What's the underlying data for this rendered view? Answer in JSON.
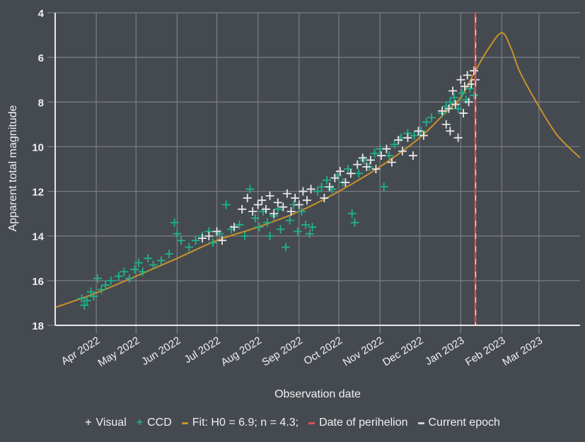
{
  "chart_data": {
    "type": "scatter",
    "xlabel": "Observation date",
    "ylabel": "Apparent total magnitude",
    "xlim": [
      "2022-03-01",
      "2023-04-01"
    ],
    "ylim": [
      18,
      4
    ],
    "y_inverted": true,
    "grid": true,
    "legend_placement": "bottom",
    "yticks": [
      4,
      6,
      8,
      10,
      12,
      14,
      16,
      18
    ],
    "xticks": [
      {
        "date": "2022-04-01",
        "label": "Apr 2022"
      },
      {
        "date": "2022-05-01",
        "label": "May 2022"
      },
      {
        "date": "2022-06-01",
        "label": "Jun 2022"
      },
      {
        "date": "2022-07-01",
        "label": "Jul 2022"
      },
      {
        "date": "2022-08-01",
        "label": "Aug 2022"
      },
      {
        "date": "2022-09-01",
        "label": "Sep 2022"
      },
      {
        "date": "2022-10-01",
        "label": "Oct 2022"
      },
      {
        "date": "2022-11-01",
        "label": "Nov 2022"
      },
      {
        "date": "2022-12-01",
        "label": "Dec 2022"
      },
      {
        "date": "2023-01-01",
        "label": "Jan 2023"
      },
      {
        "date": "2023-02-01",
        "label": "Feb 2023"
      },
      {
        "date": "2023-03-01",
        "label": "Mar 2023"
      }
    ],
    "colors": {
      "background": "#454a50",
      "grid": "#7b7f85",
      "visual": "#e6e6e6",
      "ccd": "#1db38b",
      "fit": "#c8922a",
      "perihelion": "#d9534f",
      "current_epoch": "#e6e6e6"
    },
    "series": [
      {
        "name": "Visual",
        "type": "scatter",
        "marker": "plus",
        "points": [
          [
            "2022-06-20",
            14.1
          ],
          [
            "2022-06-25",
            14.0
          ],
          [
            "2022-07-01",
            13.8
          ],
          [
            "2022-07-05",
            14.2
          ],
          [
            "2022-07-14",
            13.6
          ],
          [
            "2022-07-20",
            12.8
          ],
          [
            "2022-07-24",
            12.3
          ],
          [
            "2022-07-28",
            12.9
          ],
          [
            "2022-08-01",
            12.6
          ],
          [
            "2022-08-04",
            12.4
          ],
          [
            "2022-08-07",
            12.8
          ],
          [
            "2022-08-10",
            12.2
          ],
          [
            "2022-08-13",
            13.0
          ],
          [
            "2022-08-16",
            12.5
          ],
          [
            "2022-08-20",
            12.7
          ],
          [
            "2022-08-23",
            12.1
          ],
          [
            "2022-08-26",
            12.9
          ],
          [
            "2022-08-29",
            12.3
          ],
          [
            "2022-09-01",
            12.6
          ],
          [
            "2022-09-04",
            12.0
          ],
          [
            "2022-09-07",
            12.4
          ],
          [
            "2022-09-10",
            11.9
          ],
          [
            "2022-09-20",
            12.3
          ],
          [
            "2022-09-24",
            11.8
          ],
          [
            "2022-09-28",
            11.4
          ],
          [
            "2022-10-02",
            11.1
          ],
          [
            "2022-10-06",
            11.6
          ],
          [
            "2022-10-10",
            11.2
          ],
          [
            "2022-10-15",
            10.8
          ],
          [
            "2022-10-19",
            10.5
          ],
          [
            "2022-10-22",
            10.9
          ],
          [
            "2022-10-25",
            10.6
          ],
          [
            "2022-10-29",
            11.0
          ],
          [
            "2022-11-02",
            10.4
          ],
          [
            "2022-11-06",
            10.1
          ],
          [
            "2022-11-10",
            10.7
          ],
          [
            "2022-11-15",
            9.7
          ],
          [
            "2022-11-18",
            10.2
          ],
          [
            "2022-11-22",
            9.6
          ],
          [
            "2022-11-26",
            10.4
          ],
          [
            "2022-11-30",
            9.3
          ],
          [
            "2022-12-04",
            9.5
          ],
          [
            "2022-12-18",
            8.4
          ],
          [
            "2022-12-21",
            9.0
          ],
          [
            "2022-12-23",
            8.3
          ],
          [
            "2022-12-24",
            9.3
          ],
          [
            "2022-12-26",
            7.5
          ],
          [
            "2022-12-28",
            8.1
          ],
          [
            "2022-12-30",
            9.6
          ],
          [
            "2023-01-01",
            7.0
          ],
          [
            "2023-01-03",
            8.5
          ],
          [
            "2023-01-04",
            7.3
          ],
          [
            "2023-01-06",
            6.8
          ],
          [
            "2023-01-07",
            8.0
          ],
          [
            "2023-01-09",
            7.2
          ],
          [
            "2023-01-11",
            6.6
          ],
          [
            "2023-01-12",
            7.0
          ]
        ]
      },
      {
        "name": "CCD",
        "type": "scatter",
        "marker": "plus",
        "points": [
          [
            "2022-03-21",
            16.8
          ],
          [
            "2022-03-23",
            17.1
          ],
          [
            "2022-03-25",
            16.9
          ],
          [
            "2022-03-28",
            16.5
          ],
          [
            "2022-03-30",
            16.7
          ],
          [
            "2022-04-02",
            15.9
          ],
          [
            "2022-04-05",
            16.4
          ],
          [
            "2022-04-08",
            16.2
          ],
          [
            "2022-04-12",
            16.0
          ],
          [
            "2022-04-18",
            15.8
          ],
          [
            "2022-04-22",
            15.6
          ],
          [
            "2022-04-26",
            15.9
          ],
          [
            "2022-04-30",
            15.5
          ],
          [
            "2022-05-03",
            15.2
          ],
          [
            "2022-05-06",
            15.6
          ],
          [
            "2022-05-10",
            15.0
          ],
          [
            "2022-05-14",
            15.3
          ],
          [
            "2022-05-20",
            15.1
          ],
          [
            "2022-05-26",
            14.8
          ],
          [
            "2022-05-30",
            13.4
          ],
          [
            "2022-06-01",
            13.9
          ],
          [
            "2022-06-04",
            14.2
          ],
          [
            "2022-06-10",
            14.5
          ],
          [
            "2022-06-15",
            14.2
          ],
          [
            "2022-06-20",
            14.0
          ],
          [
            "2022-06-25",
            13.8
          ],
          [
            "2022-06-28",
            14.3
          ],
          [
            "2022-07-03",
            13.9
          ],
          [
            "2022-07-08",
            12.6
          ],
          [
            "2022-07-12",
            13.7
          ],
          [
            "2022-07-18",
            13.5
          ],
          [
            "2022-07-22",
            14.0
          ],
          [
            "2022-07-26",
            11.9
          ],
          [
            "2022-07-30",
            13.2
          ],
          [
            "2022-08-02",
            13.6
          ],
          [
            "2022-08-05",
            12.9
          ],
          [
            "2022-08-08",
            13.4
          ],
          [
            "2022-08-10",
            14.0
          ],
          [
            "2022-08-13",
            13.1
          ],
          [
            "2022-08-16",
            12.8
          ],
          [
            "2022-08-18",
            13.7
          ],
          [
            "2022-08-22",
            14.5
          ],
          [
            "2022-08-25",
            13.3
          ],
          [
            "2022-08-28",
            12.6
          ],
          [
            "2022-08-31",
            13.8
          ],
          [
            "2022-09-03",
            12.9
          ],
          [
            "2022-09-06",
            13.5
          ],
          [
            "2022-09-09",
            13.9
          ],
          [
            "2022-09-11",
            13.6
          ],
          [
            "2022-09-15",
            12.0
          ],
          [
            "2022-09-18",
            11.8
          ],
          [
            "2022-09-22",
            11.5
          ],
          [
            "2022-09-26",
            11.9
          ],
          [
            "2022-09-30",
            11.3
          ],
          [
            "2022-10-04",
            11.6
          ],
          [
            "2022-10-08",
            11.0
          ],
          [
            "2022-10-11",
            13.0
          ],
          [
            "2022-10-13",
            13.4
          ],
          [
            "2022-10-16",
            11.2
          ],
          [
            "2022-10-20",
            10.6
          ],
          [
            "2022-10-24",
            10.9
          ],
          [
            "2022-10-28",
            10.3
          ],
          [
            "2022-11-01",
            10.1
          ],
          [
            "2022-11-04",
            11.8
          ],
          [
            "2022-11-08",
            10.4
          ],
          [
            "2022-11-12",
            9.9
          ],
          [
            "2022-11-17",
            9.6
          ],
          [
            "2022-11-22",
            9.4
          ],
          [
            "2022-11-27",
            9.5
          ],
          [
            "2022-12-02",
            9.3
          ],
          [
            "2022-12-06",
            8.9
          ],
          [
            "2022-12-10",
            8.7
          ],
          [
            "2022-12-18",
            8.5
          ],
          [
            "2022-12-21",
            8.2
          ],
          [
            "2022-12-24",
            8.0
          ],
          [
            "2022-12-27",
            7.8
          ],
          [
            "2022-12-30",
            8.3
          ],
          [
            "2023-01-02",
            7.6
          ],
          [
            "2023-01-05",
            7.9
          ],
          [
            "2023-01-08",
            7.4
          ],
          [
            "2023-01-11",
            7.7
          ]
        ]
      },
      {
        "name": "Fit: H0 = 6.9; n = 4.3;",
        "type": "line",
        "points": [
          [
            "2022-03-01",
            17.2
          ],
          [
            "2022-04-01",
            16.55
          ],
          [
            "2022-05-01",
            15.8
          ],
          [
            "2022-06-01",
            15.0
          ],
          [
            "2022-07-01",
            14.2
          ],
          [
            "2022-08-01",
            13.6
          ],
          [
            "2022-09-01",
            12.9
          ],
          [
            "2022-10-01",
            12.0
          ],
          [
            "2022-11-01",
            10.9
          ],
          [
            "2022-12-01",
            9.6
          ],
          [
            "2022-12-20",
            8.5
          ],
          [
            "2023-01-01",
            7.8
          ],
          [
            "2023-01-12",
            6.6
          ],
          [
            "2023-01-22",
            5.6
          ],
          [
            "2023-02-01",
            4.9
          ],
          [
            "2023-02-08",
            5.6
          ],
          [
            "2023-02-15",
            6.7
          ],
          [
            "2023-03-01",
            8.2
          ],
          [
            "2023-03-15",
            9.5
          ],
          [
            "2023-04-01",
            10.5
          ]
        ]
      }
    ],
    "vlines": [
      {
        "name": "Date of perihelion",
        "date": "2023-01-12"
      },
      {
        "name": "Current epoch",
        "date": "2023-01-13"
      }
    ]
  },
  "legend": {
    "visual": "Visual",
    "ccd": "CCD",
    "fit": "Fit: H0 = 6.9; n = 4.3;",
    "perihelion": "Date of perihelion",
    "current_epoch": "Current epoch"
  }
}
